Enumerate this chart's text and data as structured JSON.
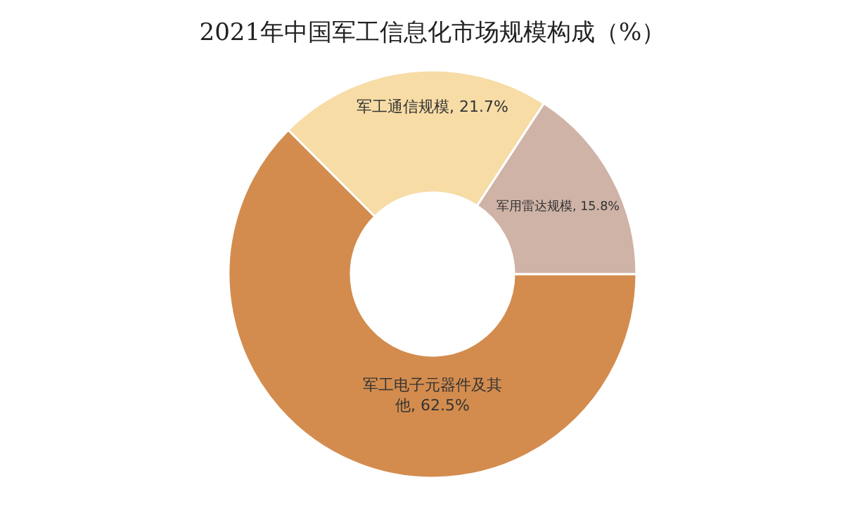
{
  "chart_data": {
    "type": "donut",
    "title": "2021年中国军工信息化市场规模构成（%）",
    "categories": [
      "军工电子元器件及其他",
      "军工通信规模",
      "军用雷达规模"
    ],
    "values": [
      62.5,
      21.7,
      15.8
    ],
    "value_labels": [
      "62.5%",
      "21.7%",
      "15.8%"
    ],
    "colors": [
      "#d38c4e",
      "#f7dca6",
      "#cfb3a7"
    ],
    "legend": false
  }
}
